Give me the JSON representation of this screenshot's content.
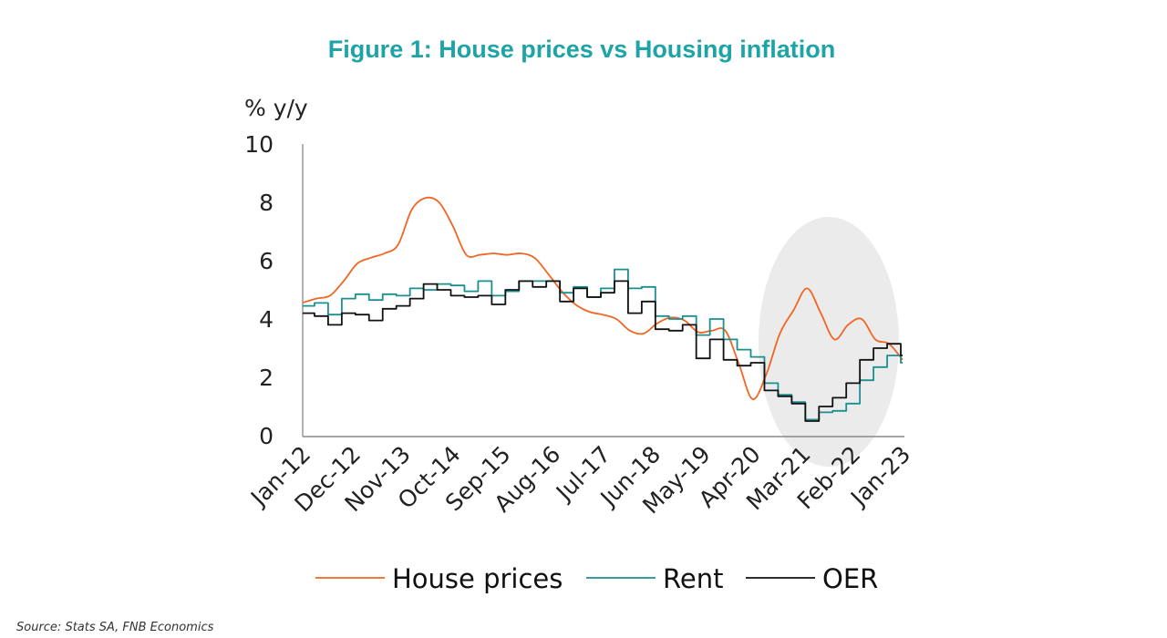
{
  "chart_data": {
    "type": "line",
    "title": "Figure 1: House prices vs Housing inflation",
    "ylabel": "% y/y",
    "xlabel": "",
    "ylim": [
      0,
      10
    ],
    "yticks": [
      "0",
      "2",
      "4",
      "6",
      "8",
      "10"
    ],
    "xticks": [
      "Jan-12",
      "Dec-12",
      "Nov-13",
      "Oct-14",
      "Sep-15",
      "Aug-16",
      "Jul-17",
      "Jun-18",
      "May-19",
      "Apr-20",
      "Mar-21",
      "Feb-22",
      "Jan-23"
    ],
    "grid": false,
    "legend": "bottom",
    "highlight": "shaded ellipse over Mar-21 to Jan-23",
    "x": [
      "Jan-12",
      "Apr-12",
      "Jul-12",
      "Oct-12",
      "Jan-13",
      "Apr-13",
      "Jul-13",
      "Oct-13",
      "Jan-14",
      "Apr-14",
      "Jul-14",
      "Oct-14",
      "Jan-15",
      "Apr-15",
      "Jul-15",
      "Oct-15",
      "Jan-16",
      "Apr-16",
      "Jul-16",
      "Oct-16",
      "Jan-17",
      "Apr-17",
      "Jul-17",
      "Oct-17",
      "Jan-18",
      "Apr-18",
      "Jul-18",
      "Oct-18",
      "Jan-19",
      "Apr-19",
      "Jul-19",
      "Oct-19",
      "Jan-20",
      "Apr-20",
      "Jul-20",
      "Oct-20",
      "Jan-21",
      "Apr-21",
      "Jul-21",
      "Oct-21",
      "Jan-22",
      "Apr-22",
      "Jul-22",
      "Oct-22",
      "Jan-23"
    ],
    "series": [
      {
        "name": "House prices",
        "color": "#f26522",
        "style": "smooth",
        "values": [
          4.56,
          4.7,
          4.8,
          5.3,
          5.9,
          6.1,
          6.25,
          6.55,
          7.75,
          8.15,
          8.0,
          7.2,
          6.2,
          6.2,
          6.25,
          6.2,
          6.25,
          6.1,
          5.55,
          4.95,
          4.5,
          4.25,
          4.15,
          4.0,
          3.6,
          3.5,
          3.85,
          4.05,
          3.95,
          3.55,
          3.6,
          3.6,
          2.45,
          1.25,
          2.1,
          3.5,
          4.3,
          5.05,
          4.2,
          3.3,
          3.8,
          4.0,
          3.3,
          3.15,
          2.6
        ]
      },
      {
        "name": "Rent",
        "color": "#1b8f8f",
        "style": "step",
        "values": [
          4.45,
          4.55,
          4.15,
          4.7,
          4.85,
          4.65,
          4.85,
          4.8,
          5.05,
          5.0,
          5.2,
          5.15,
          4.95,
          5.3,
          4.8,
          4.95,
          5.3,
          5.3,
          5.3,
          4.9,
          5.1,
          4.75,
          5.05,
          5.7,
          5.05,
          5.1,
          4.1,
          4.0,
          4.1,
          3.45,
          4.0,
          3.3,
          2.95,
          2.7,
          1.8,
          1.4,
          1.15,
          0.55,
          0.8,
          0.85,
          1.1,
          1.9,
          2.35,
          2.75,
          2.5
        ]
      },
      {
        "name": "OER",
        "color": "#111111",
        "style": "step",
        "values": [
          4.2,
          4.1,
          3.8,
          4.2,
          4.15,
          3.95,
          4.35,
          4.45,
          4.7,
          5.2,
          5.0,
          4.8,
          4.75,
          4.8,
          4.5,
          5.0,
          5.3,
          5.1,
          5.3,
          4.6,
          5.05,
          4.75,
          4.9,
          5.3,
          4.2,
          4.6,
          3.65,
          3.6,
          3.8,
          2.65,
          3.3,
          2.6,
          2.4,
          2.5,
          1.55,
          1.35,
          1.1,
          0.5,
          1.0,
          1.3,
          1.8,
          2.6,
          3.0,
          3.15,
          2.75
        ]
      }
    ],
    "source": "Source: Stats SA, FNB Economics"
  }
}
